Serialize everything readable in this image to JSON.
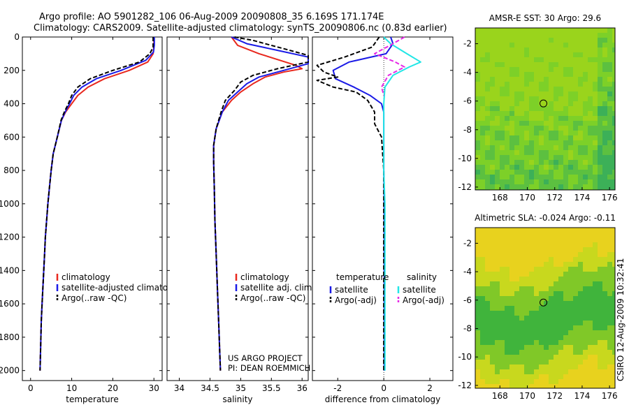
{
  "header": {
    "line1": "Argo profile: AO 5901282_106 06-Aug-2009 20090808_35 6.169S 171.174E",
    "line2": "Climatology: CARS2009. Satellite-adjusted climatology: synTS_20090806.nc (0.83d earlier)"
  },
  "credit": "CSIRO 12-Aug-2009 10:32:41",
  "colors": {
    "climatology": "#e8281e",
    "satellite": "#1a1ae6",
    "argo": "#000000",
    "satellite_salinity": "#22e6e6",
    "argo_adj_salinity": "#e628e6"
  },
  "chart_data": [
    {
      "id": "temperature",
      "type": "line",
      "xlabel": "temperature",
      "xlim": [
        -2,
        32
      ],
      "ylim": [
        2060,
        0
      ],
      "xticks": [
        0,
        10,
        20,
        30
      ],
      "yticks": [
        0,
        200,
        400,
        600,
        800,
        1000,
        1200,
        1400,
        1600,
        1800,
        2000
      ],
      "legend": {
        "placement": "lower-right",
        "entries": [
          {
            "label": "climatology",
            "color": "#e8281e",
            "style": "solid"
          },
          {
            "label": "satellite-adjusted climatolog",
            "color": "#1a1ae6",
            "style": "solid"
          },
          {
            "label": "Argo(..raw -QC)",
            "color": "#000000",
            "style": "dashed"
          }
        ]
      },
      "series": [
        {
          "key": "climatology",
          "color": "#e8281e",
          "dash": "",
          "points": [
            [
              30.0,
              0
            ],
            [
              30.0,
              50
            ],
            [
              29.8,
              100
            ],
            [
              28.5,
              150
            ],
            [
              24,
              200
            ],
            [
              18,
              250
            ],
            [
              14,
              300
            ],
            [
              11.5,
              350
            ],
            [
              10,
              400
            ],
            [
              8.5,
              450
            ],
            [
              7.5,
              500
            ],
            [
              6.5,
              600
            ],
            [
              5.5,
              700
            ],
            [
              5.0,
              800
            ],
            [
              4.6,
              900
            ],
            [
              4.2,
              1000
            ],
            [
              3.9,
              1100
            ],
            [
              3.6,
              1200
            ],
            [
              3.4,
              1300
            ],
            [
              3.2,
              1400
            ],
            [
              3.0,
              1500
            ],
            [
              2.8,
              1600
            ],
            [
              2.6,
              1700
            ],
            [
              2.5,
              1800
            ],
            [
              2.4,
              1900
            ],
            [
              2.3,
              2000
            ]
          ]
        },
        {
          "key": "satellite",
          "color": "#1a1ae6",
          "dash": "",
          "points": [
            [
              30.1,
              0
            ],
            [
              30.1,
              50
            ],
            [
              29.9,
              90
            ],
            [
              28.0,
              140
            ],
            [
              22,
              200
            ],
            [
              16,
              250
            ],
            [
              12.5,
              300
            ],
            [
              10.5,
              350
            ],
            [
              9.5,
              400
            ],
            [
              8.4,
              450
            ],
            [
              7.5,
              500
            ],
            [
              6.5,
              600
            ],
            [
              5.5,
              700
            ],
            [
              5.0,
              800
            ],
            [
              4.6,
              900
            ],
            [
              4.2,
              1000
            ],
            [
              3.9,
              1100
            ],
            [
              3.6,
              1200
            ],
            [
              3.4,
              1300
            ],
            [
              3.2,
              1400
            ],
            [
              3.0,
              1500
            ],
            [
              2.8,
              1600
            ],
            [
              2.6,
              1700
            ],
            [
              2.5,
              1800
            ],
            [
              2.4,
              1900
            ],
            [
              2.3,
              2000
            ]
          ]
        },
        {
          "key": "argo",
          "color": "#000000",
          "dash": "6,3",
          "points": [
            [
              29.8,
              0
            ],
            [
              29.8,
              60
            ],
            [
              29.0,
              100
            ],
            [
              26.5,
              150
            ],
            [
              20,
              200
            ],
            [
              14.5,
              250
            ],
            [
              11.5,
              300
            ],
            [
              10,
              350
            ],
            [
              9.2,
              400
            ],
            [
              8.2,
              450
            ],
            [
              7.4,
              500
            ],
            [
              6.5,
              600
            ],
            [
              5.5,
              700
            ],
            [
              5.0,
              800
            ],
            [
              4.6,
              900
            ],
            [
              4.2,
              1000
            ],
            [
              3.9,
              1100
            ],
            [
              3.6,
              1200
            ],
            [
              3.4,
              1300
            ],
            [
              3.2,
              1400
            ],
            [
              3.0,
              1500
            ],
            [
              2.8,
              1600
            ],
            [
              2.6,
              1700
            ],
            [
              2.5,
              1800
            ],
            [
              2.4,
              1900
            ],
            [
              2.3,
              2000
            ]
          ]
        }
      ]
    },
    {
      "id": "salinity",
      "type": "line",
      "xlabel": "salinity",
      "xlim": [
        33.8,
        36.1
      ],
      "ylim": [
        2060,
        0
      ],
      "xticks": [
        34,
        34.5,
        35,
        35.5,
        36
      ],
      "yticks": [
        0,
        200,
        400,
        600,
        800,
        1000,
        1200,
        1400,
        1600,
        1800,
        2000
      ],
      "legend": {
        "placement": "lower-right",
        "entries": [
          {
            "label": "climatology",
            "color": "#e8281e",
            "style": "solid"
          },
          {
            "label": "satellite adj. clim.",
            "color": "#1a1ae6",
            "style": "solid"
          },
          {
            "label": "Argo(..raw -QC)",
            "color": "#000000",
            "style": "dashed"
          }
        ]
      },
      "annotation": [
        "US ARGO PROJECT",
        "PI: DEAN ROEMMICH"
      ],
      "series": [
        {
          "key": "climatology",
          "color": "#e8281e",
          "dash": "",
          "points": [
            [
              34.85,
              0
            ],
            [
              34.95,
              50
            ],
            [
              35.3,
              100
            ],
            [
              35.9,
              170
            ],
            [
              36.0,
              190
            ],
            [
              35.7,
              210
            ],
            [
              35.4,
              240
            ],
            [
              35.2,
              280
            ],
            [
              35.0,
              330
            ],
            [
              34.85,
              380
            ],
            [
              34.7,
              450
            ],
            [
              34.6,
              550
            ],
            [
              34.56,
              650
            ],
            [
              34.56,
              750
            ],
            [
              34.57,
              900
            ],
            [
              34.58,
              1100
            ],
            [
              34.6,
              1300
            ],
            [
              34.62,
              1500
            ],
            [
              34.64,
              1700
            ],
            [
              34.66,
              1900
            ],
            [
              34.67,
              2000
            ]
          ]
        },
        {
          "key": "satellite",
          "color": "#1a1ae6",
          "dash": "",
          "points": [
            [
              34.85,
              0
            ],
            [
              35.1,
              40
            ],
            [
              35.6,
              80
            ],
            [
              36.1,
              120
            ],
            [
              36.1,
              160
            ],
            [
              35.7,
              200
            ],
            [
              35.3,
              240
            ],
            [
              35.1,
              280
            ],
            [
              34.95,
              330
            ],
            [
              34.8,
              380
            ],
            [
              34.7,
              450
            ],
            [
              34.6,
              550
            ],
            [
              34.56,
              650
            ],
            [
              34.56,
              750
            ],
            [
              34.57,
              900
            ],
            [
              34.58,
              1100
            ],
            [
              34.6,
              1300
            ],
            [
              34.62,
              1500
            ],
            [
              34.64,
              1700
            ],
            [
              34.66,
              1900
            ],
            [
              34.67,
              2000
            ]
          ]
        },
        {
          "key": "argo",
          "color": "#000000",
          "dash": "6,3",
          "points": [
            [
              34.9,
              0
            ],
            [
              35.2,
              20
            ],
            [
              35.4,
              40
            ],
            [
              35.7,
              70
            ],
            [
              36.1,
              110
            ],
            [
              36.1,
              150
            ],
            [
              35.6,
              190
            ],
            [
              35.2,
              230
            ],
            [
              35.0,
              270
            ],
            [
              34.9,
              320
            ],
            [
              34.75,
              380
            ],
            [
              34.68,
              450
            ],
            [
              34.6,
              550
            ],
            [
              34.56,
              650
            ],
            [
              34.56,
              750
            ],
            [
              34.57,
              900
            ],
            [
              34.58,
              1100
            ],
            [
              34.6,
              1300
            ],
            [
              34.62,
              1500
            ],
            [
              34.64,
              1700
            ],
            [
              34.66,
              1900
            ],
            [
              34.67,
              2000
            ]
          ]
        }
      ]
    },
    {
      "id": "difference",
      "type": "line",
      "xlabel": "difference from climatology",
      "xlim": [
        -3.1,
        3.0
      ],
      "ylim": [
        2060,
        0
      ],
      "xticks": [
        -2,
        0,
        2
      ],
      "yticks": [
        0,
        200,
        400,
        600,
        800,
        1000,
        1200,
        1400,
        1600,
        1800,
        2000
      ],
      "legend": {
        "placement": "lower-right",
        "headers": [
          "temperature",
          "salinity"
        ],
        "entries": [
          {
            "label": "satellite",
            "color": "#1a1ae6",
            "style": "solid"
          },
          {
            "label": "Argo(-adj)",
            "color": "#000000",
            "style": "dashed"
          },
          {
            "label": "satellite",
            "color": "#22e6e6",
            "style": "solid"
          },
          {
            "label": "Argo(-adj)",
            "color": "#e628e6",
            "style": "dashed"
          }
        ]
      },
      "series": [
        {
          "key": "temp_satellite",
          "color": "#1a1ae6",
          "dash": "",
          "points": [
            [
              0.3,
              0
            ],
            [
              0.4,
              40
            ],
            [
              0.1,
              100
            ],
            [
              -1.5,
              150
            ],
            [
              -2.2,
              200
            ],
            [
              -2.1,
              250
            ],
            [
              -1.3,
              300
            ],
            [
              -0.6,
              350
            ],
            [
              -0.1,
              400
            ],
            [
              0.0,
              450
            ],
            [
              0.0,
              600
            ],
            [
              0.0,
              800
            ],
            [
              0.02,
              1000
            ],
            [
              0.02,
              1200
            ],
            [
              0.02,
              1400
            ],
            [
              0.02,
              1600
            ],
            [
              0.02,
              1800
            ],
            [
              0.02,
              2000
            ]
          ]
        },
        {
          "key": "temp_argo",
          "color": "#000000",
          "dash": "6,3",
          "points": [
            [
              -0.2,
              0
            ],
            [
              -0.5,
              60
            ],
            [
              -1.7,
              120
            ],
            [
              -2.9,
              170
            ],
            [
              -2.6,
              210
            ],
            [
              -2.0,
              240
            ],
            [
              -2.9,
              260
            ],
            [
              -2.2,
              300
            ],
            [
              -1.2,
              330
            ],
            [
              -0.7,
              380
            ],
            [
              -0.4,
              450
            ],
            [
              -0.4,
              520
            ],
            [
              -0.1,
              600
            ],
            [
              0.0,
              800
            ],
            [
              0.0,
              1000
            ],
            [
              0.0,
              1200
            ],
            [
              0.0,
              1400
            ],
            [
              0.0,
              1600
            ],
            [
              0.0,
              1800
            ],
            [
              0.0,
              2000
            ]
          ]
        },
        {
          "key": "sal_satellite",
          "color": "#22e6e6",
          "dash": "",
          "points": [
            [
              0.0,
              0
            ],
            [
              0.3,
              40
            ],
            [
              1.0,
              100
            ],
            [
              1.6,
              150
            ],
            [
              1.1,
              180
            ],
            [
              0.4,
              230
            ],
            [
              0.05,
              300
            ],
            [
              0.0,
              400
            ],
            [
              0.0,
              600
            ],
            [
              0.0,
              800
            ],
            [
              0.05,
              1000
            ],
            [
              0.05,
              1200
            ],
            [
              0.05,
              1400
            ],
            [
              0.05,
              1600
            ],
            [
              0.05,
              1800
            ],
            [
              0.05,
              2000
            ]
          ]
        },
        {
          "key": "sal_argo",
          "color": "#e628e6",
          "dash": "6,3",
          "points": [
            [
              0.9,
              0
            ],
            [
              0.4,
              40
            ],
            [
              -0.4,
              100
            ],
            [
              0.5,
              150
            ],
            [
              0.9,
              180
            ],
            [
              0.2,
              230
            ],
            [
              -0.1,
              300
            ],
            [
              0.0,
              350
            ]
          ]
        }
      ]
    },
    {
      "id": "sst_map",
      "type": "heatmap",
      "title": "AMSR-E SST: 30 Argo: 29.6",
      "xlim": [
        166.2,
        176.4
      ],
      "ylim": [
        -12.2,
        -0.9
      ],
      "xticks": [
        168,
        170,
        172,
        174,
        176
      ],
      "yticks": [
        -2,
        -4,
        -6,
        -8,
        -10,
        -12
      ],
      "marker": {
        "lon": 171.174,
        "lat": -6.169
      },
      "palette": [
        "#7dd028",
        "#9ad41c",
        "#5cc040",
        "#3cb058"
      ]
    },
    {
      "id": "sla_map",
      "type": "heatmap",
      "title": "Altimetric SLA: -0.024 Argo: -0.11",
      "xlim": [
        166.2,
        176.4
      ],
      "ylim": [
        -12.2,
        -0.9
      ],
      "xticks": [
        168,
        170,
        172,
        174,
        176
      ],
      "yticks": [
        -2,
        -4,
        -6,
        -8,
        -10,
        -12
      ],
      "marker": {
        "lon": 171.174,
        "lat": -6.169
      },
      "palette": [
        "#e8d21e",
        "#c8d81e",
        "#80c828",
        "#40b43c"
      ]
    }
  ]
}
